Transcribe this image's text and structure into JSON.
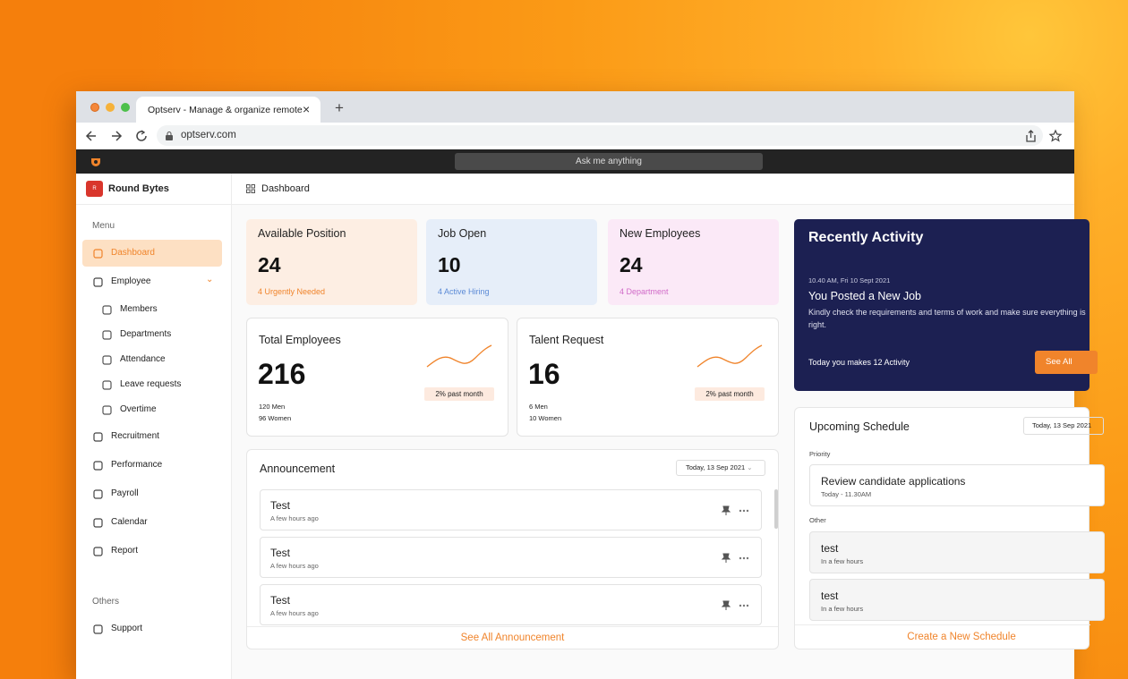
{
  "browser": {
    "tab_title": "Optserv - Manage & organize remote",
    "url": "optserv.com",
    "search_placeholder": "Ask me anything"
  },
  "sidebar": {
    "org_initial": "R",
    "org_name": "Round Bytes",
    "menu_label": "Menu",
    "items": [
      {
        "label": "Dashboard"
      },
      {
        "label": "Employee",
        "children": [
          "Members",
          "Departments",
          "Attendance",
          "Leave requests",
          "Overtime"
        ]
      },
      {
        "label": "Recruitment"
      },
      {
        "label": "Performance"
      },
      {
        "label": "Payroll"
      },
      {
        "label": "Calendar"
      },
      {
        "label": "Report"
      }
    ],
    "others_label": "Others",
    "others_items": [
      "Support"
    ]
  },
  "header": {
    "breadcrumb": "Dashboard"
  },
  "stats": [
    {
      "title": "Available Position",
      "value": 24,
      "note": "4 Urgently Needed"
    },
    {
      "title": "Job Open",
      "value": 10,
      "note": "4 Active Hiring"
    },
    {
      "title": "New Employees",
      "value": 24,
      "note": "4 Department"
    }
  ],
  "summaries": [
    {
      "title": "Total Employees",
      "value": 216,
      "badge": "2% past month",
      "line1": "120 Men",
      "line2": "96 Women"
    },
    {
      "title": "Talent Request",
      "value": 16,
      "badge": "2% past month",
      "line1": "6 Men",
      "line2": "10 Women"
    }
  ],
  "activity": {
    "title": "Recently Activity",
    "time": "10.40 AM, Fri 10 Sept 2021",
    "heading": "You Posted a New Job",
    "body": "Kindly check the requirements and terms of work and make sure everything is right.",
    "footer": "Today you makes 12 Activity",
    "button": "See All"
  },
  "announcement": {
    "title": "Announcement",
    "date": "Today, 13 Sep 2021",
    "items": [
      {
        "title": "Test",
        "time": "A few hours ago"
      },
      {
        "title": "Test",
        "time": "A few hours ago"
      },
      {
        "title": "Test",
        "time": "A few hours ago"
      }
    ],
    "link": "See All Announcement"
  },
  "schedule": {
    "title": "Upcoming Schedule",
    "date": "Today, 13 Sep 2021",
    "priority_label": "Priority",
    "priority": [
      {
        "title": "Review candidate applications",
        "time": "Today - 11.30AM"
      }
    ],
    "other_label": "Other",
    "other": [
      {
        "title": "test",
        "time": "In a few hours"
      },
      {
        "title": "test",
        "time": "In a few hours"
      }
    ],
    "link": "Create a New Schedule"
  }
}
